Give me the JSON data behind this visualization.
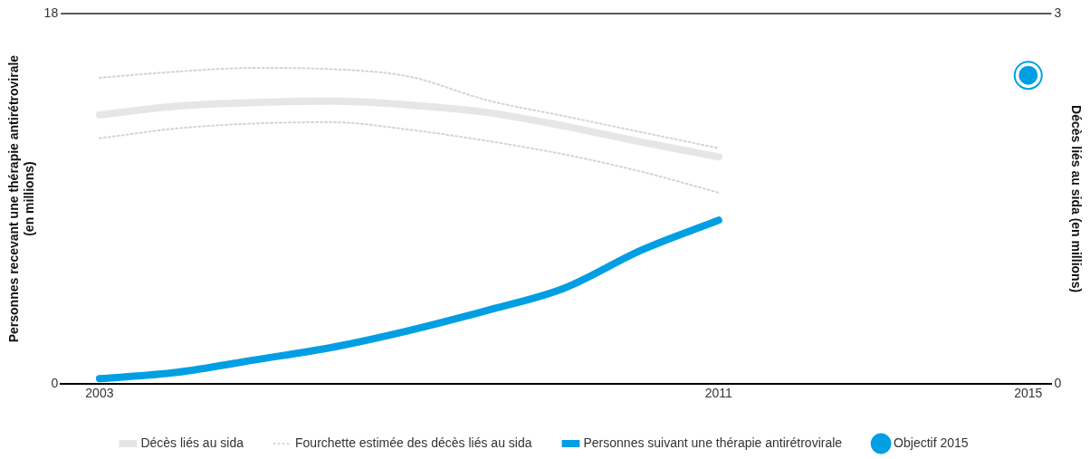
{
  "chart_data": {
    "type": "line",
    "x": [
      2003,
      2004,
      2005,
      2006,
      2007,
      2008,
      2009,
      2010,
      2011
    ],
    "xlim": [
      2002.5,
      2015.3
    ],
    "xticks": [
      2003,
      2011,
      2015
    ],
    "ylim": [
      0,
      18
    ],
    "yticks": [
      0,
      18
    ],
    "y2lim": [
      0,
      3
    ],
    "y2ticks": [
      0,
      3
    ],
    "ylabel": "Personnes recevant une thérapie antirétrovirale\n(en millions)",
    "y2label": "Décès liés au sida (en millions)",
    "legend": "bottom",
    "series": [
      {
        "name": "Décès liés au sida",
        "color": "#e6e6e6",
        "axis": "y2",
        "line_style": "solid",
        "marker": "none",
        "values": [
          2.18,
          2.25,
          2.28,
          2.29,
          2.26,
          2.2,
          2.09,
          1.96,
          1.84
        ]
      },
      {
        "name": "Fourchette estimée des décès liés au sida",
        "color": "#d4d4d4",
        "axis": "y2",
        "line_style": "dotted",
        "marker": "none",
        "values": [
          2.48,
          2.53,
          2.56,
          2.55,
          2.49,
          2.3,
          2.17,
          2.04,
          1.91
        ]
      },
      {
        "color": "#d4d4d4",
        "axis": "y2",
        "line_style": "dotted",
        "marker": "none",
        "values": [
          1.99,
          2.07,
          2.11,
          2.12,
          2.06,
          1.97,
          1.86,
          1.72,
          1.55
        ]
      },
      {
        "name": "Personnes suivant une thérapie antirétrovirale",
        "color": "#009fe3",
        "axis": "y",
        "line_style": "solid",
        "marker": "none",
        "values": [
          0.26,
          0.57,
          1.17,
          1.78,
          2.6,
          3.57,
          4.65,
          6.5,
          7.96
        ]
      },
      {
        "name": "Objectif 2015",
        "type": "scatter",
        "color": "#009fe3",
        "axis": "y",
        "marker": "circle",
        "x": [
          2015
        ],
        "values": [
          15
        ]
      }
    ]
  }
}
